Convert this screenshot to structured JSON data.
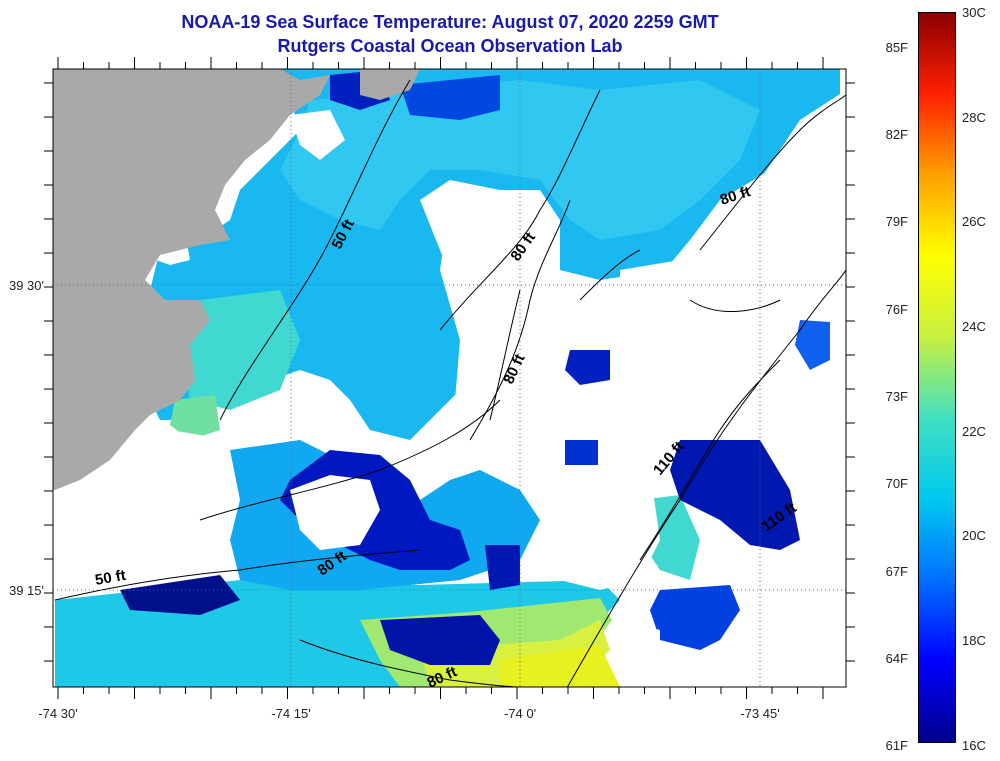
{
  "title": {
    "line1": "NOAA-19 Sea Surface Temperature:  August 07, 2020 2259 GMT",
    "line2": "Rutgers Coastal Ocean Observation Lab"
  },
  "axes": {
    "longitude_labels": [
      "-74 30'",
      "-74 15'",
      "-74 0'",
      "-73 45'"
    ],
    "latitude_labels": [
      "39 30'",
      "39 15'"
    ]
  },
  "contour_labels": [
    "50 ft",
    "80 ft",
    "80 ft",
    "80 ft",
    "110 ft",
    "110 ft",
    "50 ft",
    "80 ft",
    "80 ft"
  ],
  "colorbar": {
    "fahrenheit_ticks": [
      "85F",
      "82F",
      "79F",
      "76F",
      "73F",
      "70F",
      "67F",
      "64F",
      "61F"
    ],
    "celsius_ticks": [
      "30C",
      "28C",
      "26C",
      "24C",
      "22C",
      "20C",
      "18C",
      "16C"
    ]
  },
  "colors": {
    "land": "#a9a9a9",
    "no_data": "#ffffff",
    "title": "#1a1aa8",
    "scale": [
      "#00008b",
      "#0000ff",
      "#0070ff",
      "#00c8f0",
      "#40e0c0",
      "#c8f040",
      "#ffff00",
      "#ffa000",
      "#ff2000",
      "#8b0000"
    ]
  }
}
